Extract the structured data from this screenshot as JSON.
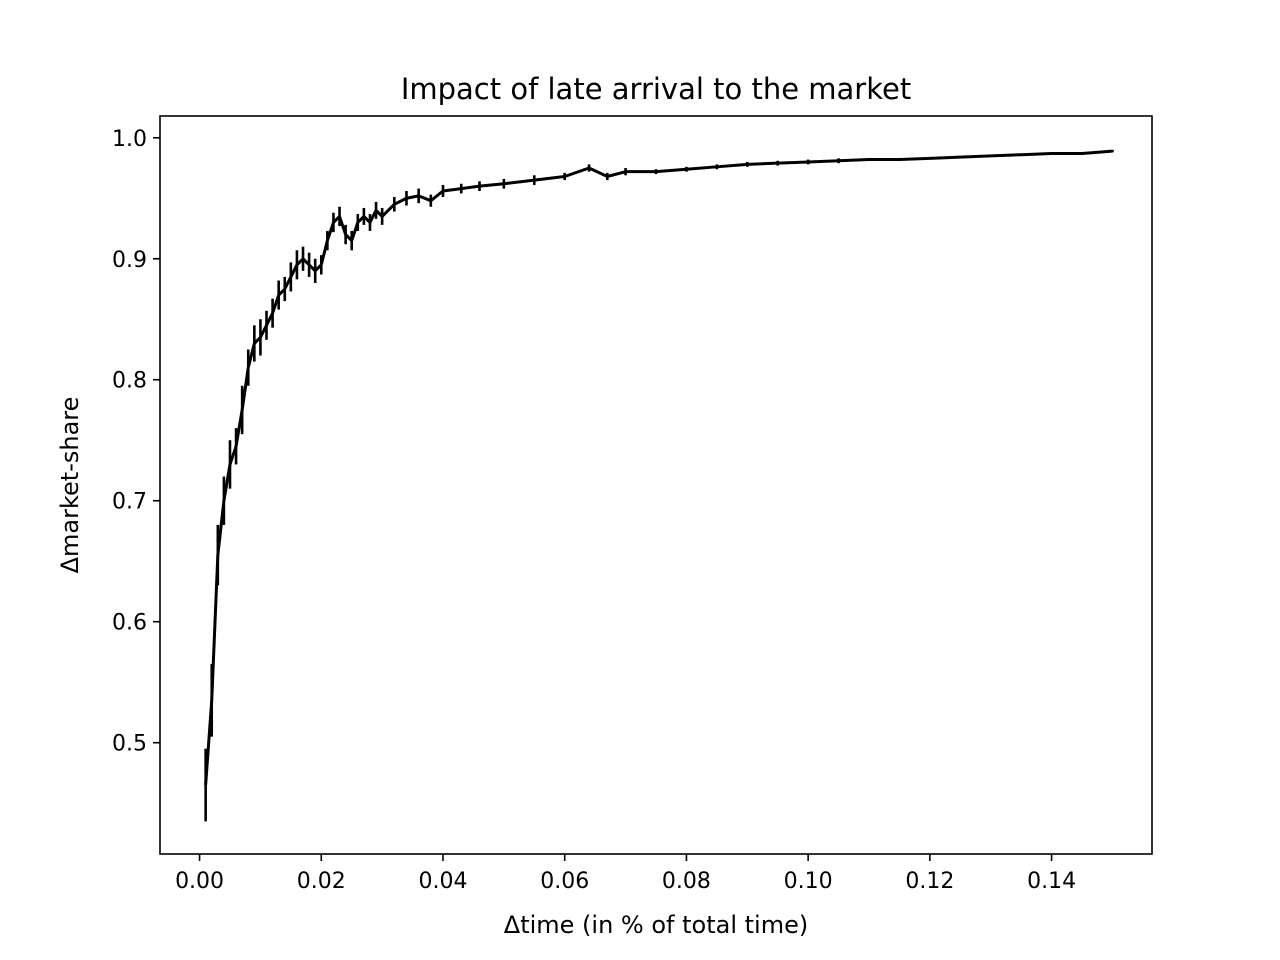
{
  "chart_data": {
    "type": "line",
    "title": "Impact of late arrival to the market",
    "xlabel": "Δtime (in % of total time)",
    "ylabel": "Δmarket-share",
    "xlim": [
      -0.0065,
      0.1565
    ],
    "ylim": [
      0.408,
      1.018
    ],
    "x_ticks": [
      0.0,
      0.02,
      0.04,
      0.06,
      0.08,
      0.1,
      0.12,
      0.14
    ],
    "x_tick_labels": [
      "0.00",
      "0.02",
      "0.04",
      "0.06",
      "0.08",
      "0.10",
      "0.12",
      "0.14"
    ],
    "y_ticks": [
      0.5,
      0.6,
      0.7,
      0.8,
      0.9,
      1.0
    ],
    "y_tick_labels": [
      "0.5",
      "0.6",
      "0.7",
      "0.8",
      "0.9",
      "1.0"
    ],
    "grid": false,
    "legend": "none",
    "series": [
      {
        "color": "#000000",
        "x": [
          0.001,
          0.002,
          0.003,
          0.004,
          0.005,
          0.006,
          0.007,
          0.008,
          0.009,
          0.01,
          0.011,
          0.012,
          0.013,
          0.014,
          0.015,
          0.016,
          0.017,
          0.018,
          0.019,
          0.02,
          0.021,
          0.022,
          0.023,
          0.024,
          0.025,
          0.026,
          0.027,
          0.028,
          0.029,
          0.03,
          0.032,
          0.034,
          0.036,
          0.038,
          0.04,
          0.043,
          0.046,
          0.05,
          0.055,
          0.06,
          0.064,
          0.067,
          0.07,
          0.075,
          0.08,
          0.085,
          0.09,
          0.095,
          0.1,
          0.105,
          0.11,
          0.115,
          0.12,
          0.125,
          0.13,
          0.135,
          0.14,
          0.145,
          0.15
        ],
        "y": [
          0.465,
          0.535,
          0.655,
          0.7,
          0.73,
          0.745,
          0.775,
          0.81,
          0.83,
          0.835,
          0.845,
          0.855,
          0.87,
          0.875,
          0.885,
          0.895,
          0.9,
          0.895,
          0.89,
          0.895,
          0.915,
          0.93,
          0.935,
          0.92,
          0.915,
          0.93,
          0.935,
          0.93,
          0.94,
          0.935,
          0.945,
          0.95,
          0.952,
          0.948,
          0.956,
          0.958,
          0.96,
          0.962,
          0.965,
          0.968,
          0.975,
          0.968,
          0.972,
          0.972,
          0.974,
          0.976,
          0.978,
          0.979,
          0.98,
          0.981,
          0.982,
          0.982,
          0.983,
          0.984,
          0.985,
          0.986,
          0.987,
          0.987,
          0.989
        ],
        "err": [
          0.03,
          0.03,
          0.025,
          0.02,
          0.02,
          0.015,
          0.02,
          0.015,
          0.015,
          0.015,
          0.012,
          0.012,
          0.012,
          0.01,
          0.012,
          0.012,
          0.01,
          0.01,
          0.01,
          0.008,
          0.008,
          0.008,
          0.008,
          0.008,
          0.008,
          0.007,
          0.007,
          0.007,
          0.007,
          0.007,
          0.006,
          0.006,
          0.006,
          0.005,
          0.005,
          0.004,
          0.004,
          0.004,
          0.004,
          0.003,
          0.003,
          0.003,
          0.003,
          0.002,
          0.002,
          0.002,
          0.002,
          0.002,
          0.002,
          0.002,
          0.001,
          0.001,
          0.001,
          0.001,
          0.001,
          0.001,
          0.001,
          0.001,
          0.001
        ]
      }
    ]
  }
}
